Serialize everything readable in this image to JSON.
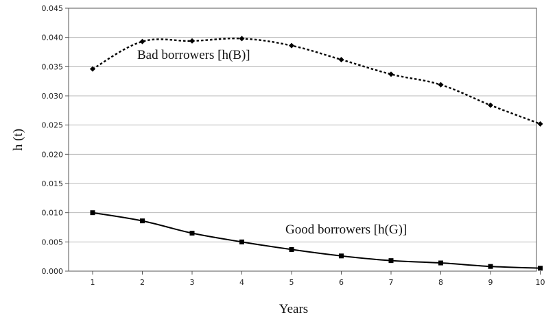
{
  "chart_data": {
    "type": "line",
    "title": "",
    "xlabel": "Years",
    "ylabel": "h (t)",
    "x": [
      1,
      2,
      3,
      4,
      5,
      6,
      7,
      8,
      9,
      10
    ],
    "xticks": [
      "1",
      "2",
      "3",
      "4",
      "5",
      "6",
      "7",
      "8",
      "9",
      "10"
    ],
    "ylim": [
      0,
      0.045
    ],
    "yticks": [
      "0.000",
      "0.005",
      "0.010",
      "0.015",
      "0.020",
      "0.025",
      "0.030",
      "0.035",
      "0.040",
      "0.045"
    ],
    "grid": "horizontal",
    "series": [
      {
        "name": "Bad borrowers [h(B)]",
        "style": "dotted",
        "marker": "diamond",
        "values": [
          0.0346,
          0.0393,
          0.0394,
          0.0398,
          0.0386,
          0.0362,
          0.0337,
          0.0319,
          0.0284,
          0.0252
        ]
      },
      {
        "name": "Good borrowers [h(G)]",
        "style": "solid",
        "marker": "square",
        "values": [
          0.01,
          0.0086,
          0.0065,
          0.005,
          0.0037,
          0.0026,
          0.0018,
          0.0014,
          0.0008,
          0.0005
        ]
      }
    ]
  }
}
